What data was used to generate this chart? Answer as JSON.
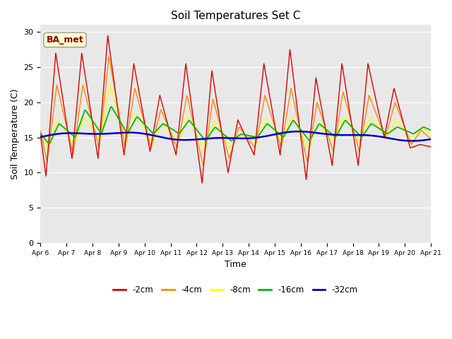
{
  "title": "Soil Temperatures Set C",
  "xlabel": "Time",
  "ylabel": "Soil Temperature (C)",
  "ylim": [
    0,
    31
  ],
  "yticks": [
    0,
    5,
    10,
    15,
    20,
    25,
    30
  ],
  "colors": {
    "-2cm": "#dd0000",
    "-4cm": "#ff8800",
    "-8cm": "#ffff00",
    "-16cm": "#00bb00",
    "-32cm": "#0000cc"
  },
  "legend_labels": [
    "-2cm",
    "-4cm",
    "-8cm",
    "-16cm",
    "-32cm"
  ],
  "xtick_labels": [
    "Apr 6",
    "Apr 7",
    "Apr 8",
    "Apr 9",
    "Apr 10",
    "Apr 11",
    "Apr 12",
    "Apr 13",
    "Apr 14",
    "Apr 15",
    "Apr 16",
    "Apr 17",
    "Apr 18",
    "Apr 19",
    "Apr 20",
    "Apr 21"
  ],
  "label_box_text": "BA_met",
  "plot_bg_color": "#e8e8e8",
  "n_days": 15,
  "points_per_day": 144,
  "day_peaks_2cm": [
    27.0,
    27.0,
    29.5,
    25.5,
    21.0,
    25.5,
    24.5,
    17.5,
    25.5,
    27.5,
    23.5,
    25.5,
    25.5,
    22.0,
    14.0
  ],
  "day_troughs_2cm": [
    9.5,
    12.0,
    12.0,
    12.5,
    13.0,
    12.5,
    8.5,
    10.0,
    12.5,
    12.5,
    9.0,
    11.0,
    11.0,
    15.0,
    13.5
  ],
  "day_peaks_4cm": [
    22.5,
    22.5,
    26.5,
    22.0,
    19.0,
    21.0,
    20.5,
    16.5,
    21.0,
    22.0,
    20.0,
    21.5,
    21.0,
    20.0,
    16.0
  ],
  "day_troughs_4cm": [
    11.5,
    12.5,
    13.5,
    13.5,
    13.5,
    13.5,
    11.0,
    12.0,
    13.5,
    13.5,
    11.5,
    13.0,
    13.0,
    15.0,
    14.0
  ],
  "day_peaks_8cm": [
    17.5,
    18.0,
    22.5,
    18.5,
    17.0,
    18.0,
    17.5,
    15.5,
    17.5,
    18.0,
    17.0,
    18.0,
    18.0,
    17.5,
    16.5
  ],
  "day_troughs_8cm": [
    13.5,
    14.0,
    14.5,
    14.5,
    14.5,
    14.5,
    13.0,
    13.5,
    14.5,
    14.5,
    13.5,
    14.5,
    14.5,
    15.0,
    14.5
  ],
  "day_peaks_16cm": [
    17.0,
    19.0,
    19.5,
    18.0,
    17.0,
    17.5,
    16.5,
    15.5,
    17.0,
    17.5,
    17.0,
    17.5,
    17.0,
    16.5,
    16.5
  ],
  "day_troughs_16cm": [
    14.0,
    15.0,
    15.5,
    15.5,
    15.5,
    15.5,
    14.5,
    14.5,
    15.0,
    15.0,
    14.5,
    15.0,
    15.0,
    15.5,
    15.5
  ],
  "peak_hour": 14,
  "trough_hour": 5
}
